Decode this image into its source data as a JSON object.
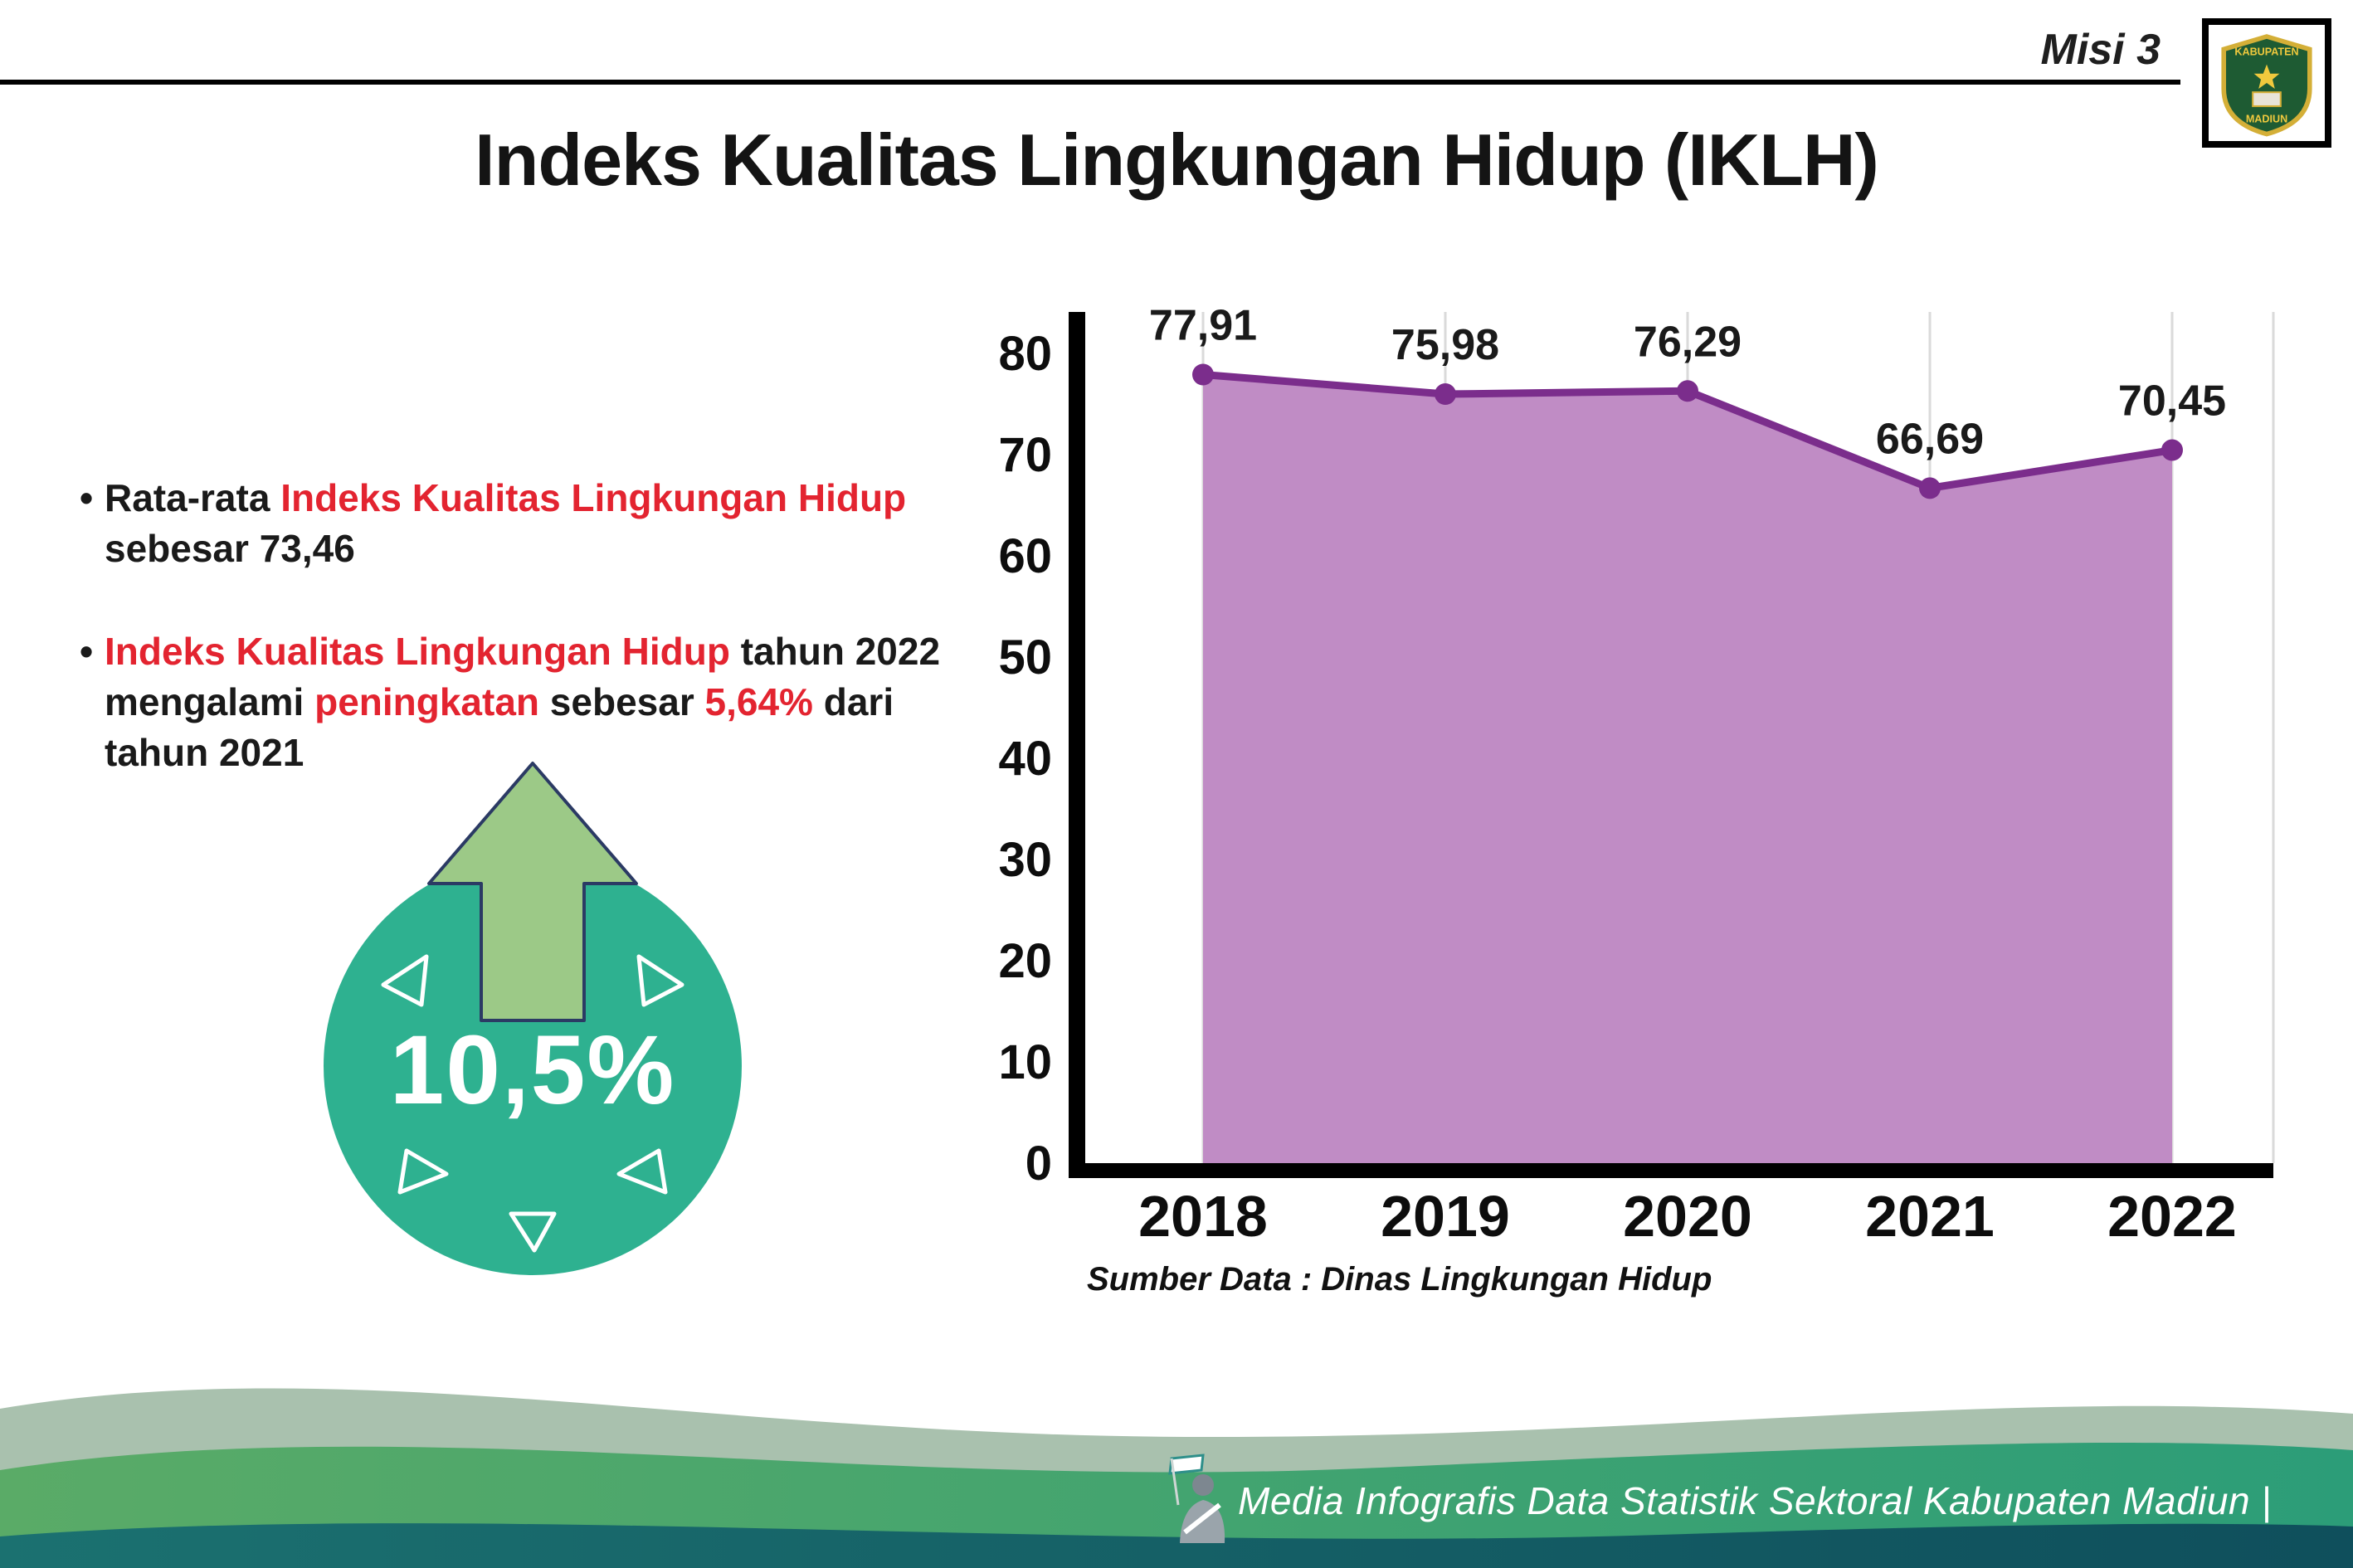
{
  "header": {
    "misi_label": "Misi 3",
    "title": "Indeks Kualitas Lingkungan Hidup (IKLH)"
  },
  "logo": {
    "line1": "KABUPATEN",
    "line2": "MADIUN"
  },
  "bullets": [
    {
      "marker": "•",
      "segments": [
        {
          "text": "Rata-rata ",
          "style": "normal"
        },
        {
          "text": "Indeks Kualitas Lingkungan Hidup",
          "style": "red"
        },
        {
          "text": " sebesar 73,46",
          "style": "normal"
        }
      ]
    },
    {
      "marker": "•",
      "segments": [
        {
          "text": "Indeks Kualitas Lingkungan Hidup",
          "style": "red"
        },
        {
          "text": " tahun 2022 mengalami ",
          "style": "normal"
        },
        {
          "text": "peningkatan",
          "style": "red"
        },
        {
          "text": " sebesar ",
          "style": "normal"
        },
        {
          "text": "5,64%",
          "style": "red"
        },
        {
          "text": " dari tahun 2021",
          "style": "normal"
        }
      ]
    }
  ],
  "badge": {
    "value": "10,5%",
    "circle_color": "#2eb190",
    "arrow_color": "#9cc987",
    "arrow_outline": "#2b3a64"
  },
  "chart_data": {
    "type": "area",
    "title": "",
    "categories": [
      "2018",
      "2019",
      "2020",
      "2021",
      "2022"
    ],
    "values": [
      77.91,
      75.98,
      76.29,
      66.69,
      70.45
    ],
    "value_labels": [
      "77,91",
      "75,98",
      "76,29",
      "66,69",
      "70,45"
    ],
    "xlabel": "",
    "ylabel": "",
    "ylim": [
      0,
      80
    ],
    "yticks": [
      0,
      10,
      20,
      30,
      40,
      50,
      60,
      70,
      80
    ],
    "line_color": "#7b2d8c",
    "fill_color": "#c08cc5",
    "dot_color": "#7b2d8c",
    "grid": "vertical-light",
    "legend_position": "none"
  },
  "source_note": "Sumber Data : Dinas Lingkungan Hidup",
  "footer": {
    "credit": "Media Infografis Data Statistik Sektoral Kabupaten Madiun |"
  },
  "colors": {
    "accent_red": "#e32430",
    "text_black": "#1a1a1a",
    "footer_sage": "#a9c1ae",
    "footer_green": "#3ba06c",
    "footer_dark": "#156a6b"
  }
}
